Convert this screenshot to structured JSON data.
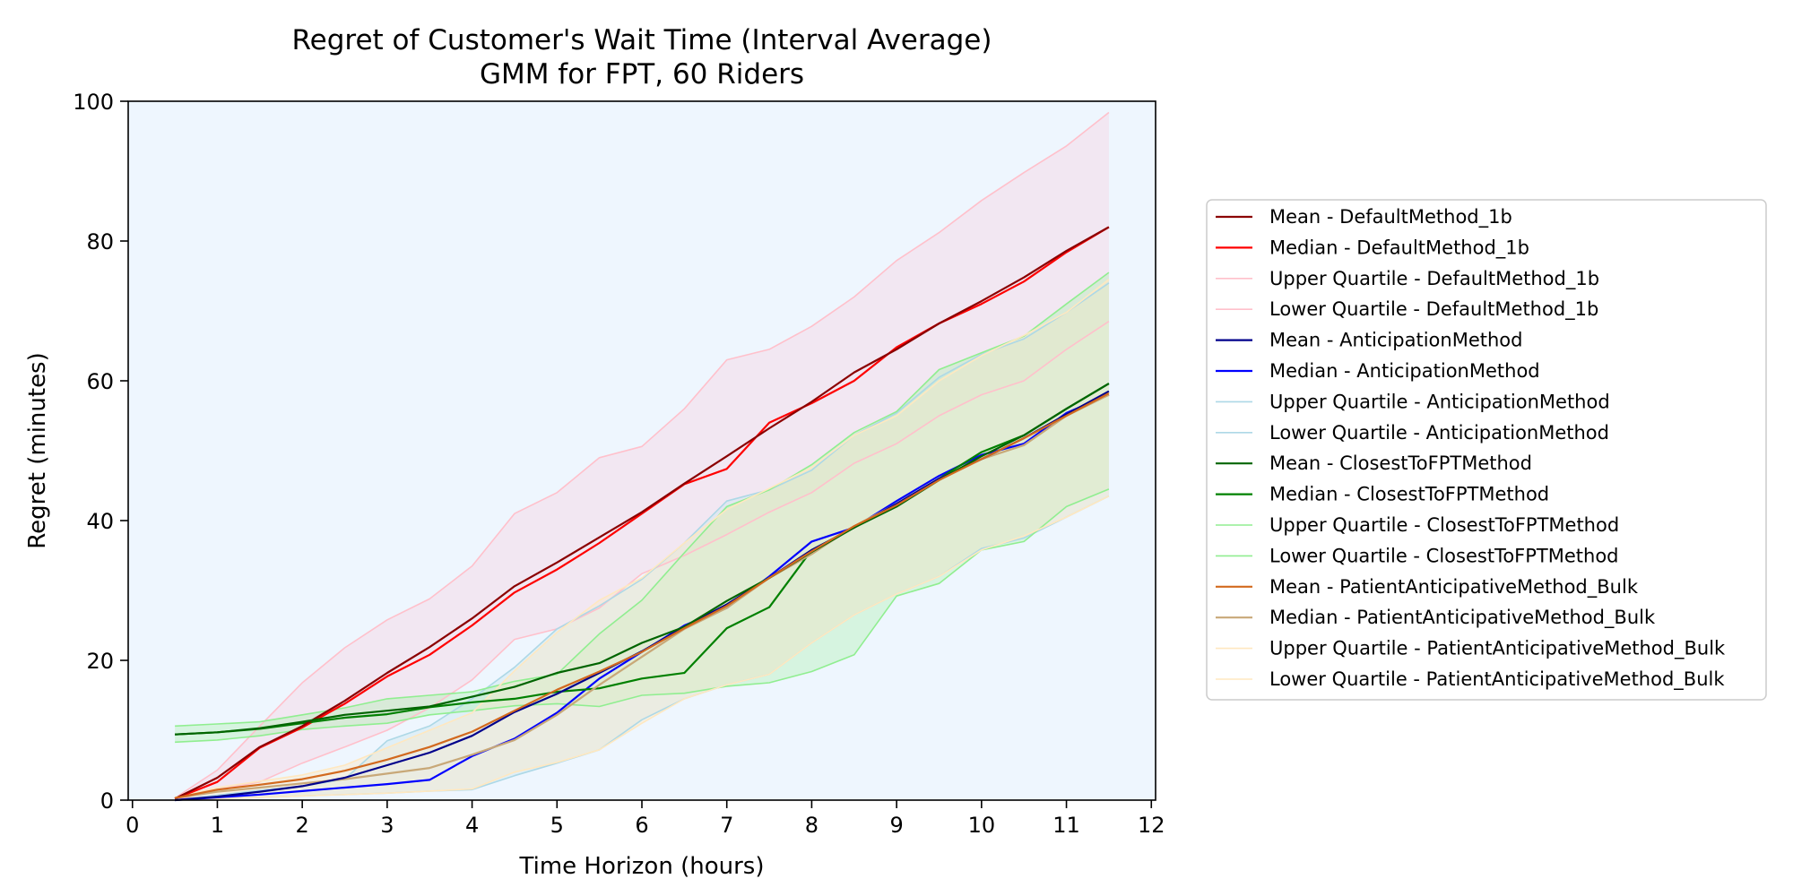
{
  "chart_data": {
    "type": "line",
    "title": "Regret of Customer's Wait Time (Interval Average)",
    "subtitle": "GMM for FPT, 60 Riders",
    "xlabel": "Time Horizon (hours)",
    "ylabel": "Regret (minutes)",
    "xlim": [
      -0.05,
      12.05
    ],
    "ylim": [
      0,
      100
    ],
    "xticks": [
      "0",
      "1",
      "2",
      "3",
      "4",
      "5",
      "6",
      "7",
      "8",
      "9",
      "10",
      "11",
      "12"
    ],
    "yticks": [
      "0",
      "20",
      "40",
      "60",
      "80",
      "100"
    ],
    "grid": false,
    "legend_position": "right",
    "background": "#eef6fe",
    "x": [
      0.5,
      1.0,
      1.5,
      2.0,
      2.5,
      3.0,
      3.5,
      4.0,
      4.5,
      5.0,
      5.5,
      6.0,
      6.5,
      7.0,
      7.5,
      8.0,
      8.5,
      9.0,
      9.5,
      10.0,
      10.5,
      11.0,
      11.5
    ],
    "bands": [
      {
        "series": "DefaultMethod_1b",
        "fill": "#f6d4e4",
        "opacity": 0.45
      },
      {
        "series": "AnticipationMethod",
        "fill": "#cde6f0",
        "opacity": 0.45
      },
      {
        "series": "ClosestToFPTMethod",
        "fill": "#a8f0a8",
        "opacity": 0.35
      },
      {
        "series": "PatientAnticipativeMethod_Bulk",
        "fill": "#fbe8c8",
        "opacity": 0.45
      }
    ],
    "series": [
      {
        "name": "Mean - DefaultMethod_1b",
        "color": "#8b0000",
        "width": 2.2,
        "values": [
          0.2,
          3.2,
          7.6,
          10.6,
          14.2,
          18.2,
          21.9,
          26.0,
          30.6,
          34.0,
          37.6,
          41.2,
          45.3,
          49.2,
          53.2,
          57.0,
          61.2,
          64.5,
          68.2,
          71.4,
          74.8,
          78.6,
          82.0
        ]
      },
      {
        "name": "Median - DefaultMethod_1b",
        "color": "#ff0000",
        "width": 2.2,
        "values": [
          0.2,
          2.6,
          7.5,
          10.4,
          13.8,
          17.7,
          20.8,
          25.0,
          29.7,
          33.0,
          36.8,
          41.0,
          45.2,
          47.4,
          54.0,
          56.8,
          60.0,
          64.8,
          68.2,
          71.0,
          74.2,
          78.4,
          82.0
        ]
      },
      {
        "name": "Upper Quartile - DefaultMethod_1b",
        "color": "#ffc0cb",
        "width": 1.6,
        "values": [
          0.3,
          4.3,
          10.6,
          16.8,
          21.8,
          25.8,
          28.8,
          33.5,
          41.0,
          44.0,
          49.0,
          50.6,
          56.0,
          63.0,
          64.5,
          67.8,
          72.0,
          77.2,
          81.2,
          85.8,
          89.8,
          93.6,
          98.4
        ]
      },
      {
        "name": "Lower Quartile - DefaultMethod_1b",
        "color": "#ffc0cb",
        "width": 1.6,
        "values": [
          0.0,
          1.5,
          2.6,
          5.3,
          7.6,
          10.0,
          13.2,
          17.2,
          23.0,
          24.5,
          27.5,
          32.4,
          35.0,
          38.0,
          41.2,
          44.0,
          48.2,
          51.0,
          55.0,
          58.0,
          60.0,
          64.5,
          68.5
        ]
      },
      {
        "name": "Mean - AnticipationMethod",
        "color": "#00008b",
        "width": 2.2,
        "values": [
          0.0,
          0.5,
          1.2,
          2.0,
          3.2,
          5.0,
          6.8,
          9.2,
          12.6,
          15.2,
          18.2,
          21.3,
          24.8,
          28.0,
          31.8,
          35.8,
          39.0,
          42.4,
          46.0,
          48.8,
          51.8,
          55.2,
          58.5
        ]
      },
      {
        "name": "Median - AnticipationMethod",
        "color": "#0000ff",
        "width": 2.2,
        "values": [
          0.0,
          0.4,
          0.8,
          1.3,
          1.8,
          2.3,
          2.9,
          6.3,
          8.8,
          12.5,
          17.4,
          21.2,
          25.0,
          27.5,
          32.0,
          37.0,
          39.0,
          42.8,
          46.4,
          49.4,
          51.0,
          55.4,
          58.0
        ]
      },
      {
        "name": "Upper Quartile - AnticipationMethod",
        "color": "#add8e6",
        "width": 1.6,
        "values": [
          0.0,
          0.7,
          1.4,
          2.0,
          3.0,
          8.5,
          10.6,
          14.5,
          19.0,
          24.5,
          27.8,
          31.6,
          36.8,
          42.8,
          44.4,
          47.2,
          52.2,
          55.4,
          60.5,
          63.8,
          66.0,
          69.8,
          74.0
        ]
      },
      {
        "name": "Lower Quartile - AnticipationMethod",
        "color": "#add8e6",
        "width": 1.6,
        "values": [
          0.0,
          0.2,
          0.4,
          0.6,
          0.8,
          1.0,
          1.3,
          1.5,
          3.5,
          5.3,
          7.2,
          11.5,
          14.5,
          16.5,
          18.0,
          22.5,
          26.5,
          29.5,
          32.0,
          36.0,
          37.5,
          40.5,
          43.5
        ]
      },
      {
        "name": "Mean - ClosestToFPTMethod",
        "color": "#006400",
        "width": 2.2,
        "values": [
          9.4,
          9.7,
          10.3,
          11.2,
          12.2,
          12.8,
          13.4,
          14.8,
          16.2,
          18.2,
          19.6,
          22.5,
          24.8,
          28.5,
          31.8,
          35.5,
          39.0,
          42.0,
          45.8,
          49.2,
          52.2,
          56.0,
          59.6
        ]
      },
      {
        "name": "Median - ClosestToFPTMethod",
        "color": "#008000",
        "width": 2.2,
        "values": [
          9.4,
          9.7,
          10.2,
          11.0,
          11.8,
          12.3,
          13.3,
          14.0,
          14.5,
          15.5,
          16.0,
          17.4,
          18.2,
          24.6,
          27.6,
          35.8,
          39.0,
          42.4,
          46.0,
          49.8,
          52.2,
          56.0,
          59.6
        ]
      },
      {
        "name": "Upper Quartile - ClosestToFPTMethod",
        "color": "#90ee90",
        "width": 1.6,
        "values": [
          10.6,
          10.9,
          11.2,
          12.2,
          13.2,
          14.5,
          15.0,
          15.5,
          17.0,
          18.0,
          23.8,
          28.6,
          35.4,
          42.0,
          44.4,
          48.0,
          52.6,
          55.6,
          61.6,
          64.0,
          66.4,
          71.0,
          75.5
        ]
      },
      {
        "name": "Lower Quartile - ClosestToFPTMethod",
        "color": "#90ee90",
        "width": 1.6,
        "values": [
          8.3,
          8.6,
          9.2,
          10.1,
          10.6,
          11.0,
          12.2,
          12.8,
          13.5,
          13.8,
          13.4,
          15.0,
          15.3,
          16.3,
          16.8,
          18.4,
          20.8,
          29.2,
          31.0,
          35.8,
          37.0,
          42.0,
          44.5
        ]
      },
      {
        "name": "Mean - PatientAnticipativeMethod_Bulk",
        "color": "#d2691e",
        "width": 2.2,
        "values": [
          0.3,
          1.5,
          2.2,
          3.0,
          4.2,
          5.8,
          7.6,
          9.8,
          12.8,
          15.8,
          18.4,
          21.2,
          24.6,
          27.8,
          31.8,
          35.6,
          39.2,
          42.2,
          45.8,
          48.8,
          51.8,
          55.0,
          58.2
        ]
      },
      {
        "name": "Median - PatientAnticipativeMethod_Bulk",
        "color": "#c8a878",
        "width": 2.2,
        "values": [
          0.3,
          1.2,
          1.8,
          2.4,
          3.0,
          3.8,
          4.6,
          6.5,
          8.6,
          12.2,
          16.5,
          20.5,
          24.5,
          27.5,
          31.8,
          35.2,
          39.2,
          42.4,
          46.0,
          48.8,
          50.8,
          55.0,
          58.0
        ]
      },
      {
        "name": "Upper Quartile - PatientAnticipativeMethod_Bulk",
        "color": "#ffe8c0",
        "width": 1.6,
        "values": [
          0.4,
          1.8,
          2.7,
          3.6,
          5.0,
          7.5,
          10.0,
          12.5,
          18.5,
          24.0,
          28.6,
          31.8,
          36.8,
          41.6,
          44.6,
          47.6,
          52.2,
          55.0,
          60.0,
          63.6,
          66.5,
          69.8,
          74.5
        ]
      },
      {
        "name": "Lower Quartile - PatientAnticipativeMethod_Bulk",
        "color": "#ffe8c0",
        "width": 1.6,
        "values": [
          0.0,
          0.2,
          0.4,
          0.6,
          0.8,
          1.0,
          1.3,
          1.6,
          4.0,
          5.4,
          7.2,
          11.0,
          14.5,
          16.5,
          18.0,
          22.5,
          26.5,
          29.5,
          32.0,
          35.8,
          37.8,
          40.5,
          43.5
        ]
      }
    ]
  }
}
